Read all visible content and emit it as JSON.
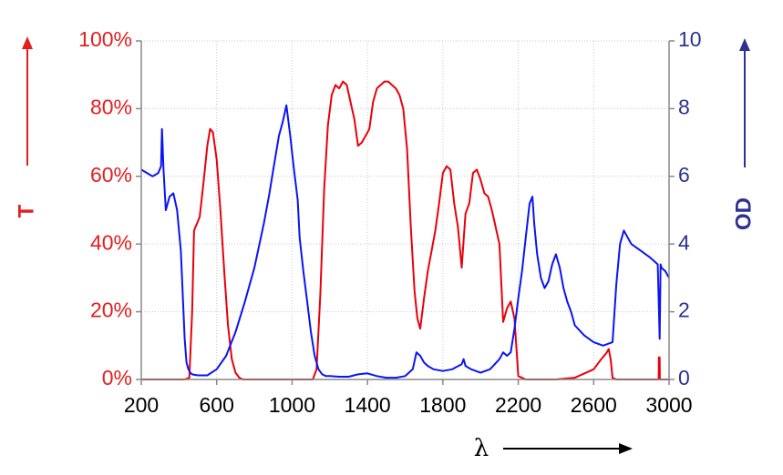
{
  "chart_data": {
    "type": "line",
    "xlabel": "λ",
    "xlim": [
      200,
      3000
    ],
    "x_ticks": [
      "200",
      "600",
      "1000",
      "1400",
      "1800",
      "2200",
      "2600",
      "3000"
    ],
    "left_axis": {
      "label": "T",
      "color": "#e41e1e",
      "ylim": [
        0,
        100
      ],
      "ticks": [
        "0%",
        "20%",
        "40%",
        "60%",
        "80%",
        "100%"
      ]
    },
    "right_axis": {
      "label": "OD",
      "color": "#2e3192",
      "ylim": [
        0,
        10
      ],
      "ticks": [
        "0",
        "2",
        "4",
        "6",
        "8",
        "10"
      ]
    },
    "grid": true,
    "series": [
      {
        "axis": "left",
        "color": "#e8000b",
        "x": [
          200,
          430,
          455,
          470,
          480,
          495,
          510,
          530,
          550,
          565,
          580,
          600,
          620,
          640,
          660,
          680,
          700,
          720,
          740,
          760,
          780,
          1000,
          1110,
          1130,
          1150,
          1170,
          1190,
          1210,
          1230,
          1250,
          1270,
          1290,
          1310,
          1330,
          1350,
          1370,
          1390,
          1410,
          1430,
          1450,
          1470,
          1490,
          1510,
          1530,
          1550,
          1570,
          1590,
          1610,
          1630,
          1650,
          1665,
          1680,
          1700,
          1720,
          1740,
          1760,
          1780,
          1800,
          1820,
          1840,
          1860,
          1880,
          1900,
          1920,
          1940,
          1960,
          1980,
          2000,
          2020,
          2040,
          2060,
          2080,
          2100,
          2120,
          2140,
          2160,
          2180,
          2200,
          2240,
          2300,
          2400,
          2500,
          2560,
          2600,
          2640,
          2670,
          2680,
          2690,
          2700,
          2720,
          2940,
          2945,
          2946,
          2950,
          2951,
          3000
        ],
        "y": [
          0,
          0,
          0.5,
          20,
          44,
          46,
          48,
          58,
          69,
          74,
          73,
          65,
          50,
          32,
          16,
          6,
          2,
          0.5,
          0,
          0,
          0,
          0,
          0,
          3,
          25,
          56,
          75,
          84,
          87,
          86,
          88,
          87,
          82,
          77,
          69,
          70,
          72,
          74,
          82,
          86,
          87,
          88,
          88,
          87,
          86,
          84,
          80,
          68,
          45,
          26,
          18,
          15,
          24,
          32,
          38,
          44,
          52,
          61,
          63,
          62,
          52,
          45,
          33,
          49,
          52,
          61,
          62,
          59,
          55,
          54,
          50,
          45,
          40,
          17,
          21,
          23,
          18,
          1,
          0,
          0,
          0,
          0.5,
          2,
          3,
          6,
          8,
          9,
          6,
          0.5,
          0,
          0,
          0,
          6.5,
          6.5,
          0,
          0
        ]
      },
      {
        "axis": "right",
        "color": "#0a14f5",
        "x": [
          200,
          230,
          260,
          290,
          305,
          310,
          318,
          330,
          350,
          370,
          390,
          410,
          420,
          430,
          440,
          450,
          460,
          470,
          500,
          550,
          600,
          650,
          700,
          750,
          800,
          850,
          880,
          900,
          930,
          950,
          970,
          990,
          1010,
          1030,
          1040,
          1060,
          1080,
          1100,
          1120,
          1140,
          1160,
          1180,
          1200,
          1250,
          1300,
          1350,
          1400,
          1450,
          1500,
          1550,
          1600,
          1640,
          1660,
          1680,
          1700,
          1720,
          1750,
          1800,
          1850,
          1900,
          1910,
          1920,
          1950,
          2000,
          2050,
          2100,
          2120,
          2140,
          2160,
          2180,
          2200,
          2220,
          2240,
          2260,
          2275,
          2285,
          2300,
          2320,
          2340,
          2360,
          2380,
          2400,
          2420,
          2440,
          2460,
          2480,
          2500,
          2550,
          2600,
          2650,
          2700,
          2720,
          2740,
          2760,
          2780,
          2800,
          2850,
          2900,
          2940,
          2950,
          2955,
          2960,
          2980,
          3000
        ],
        "y": [
          6.2,
          6.1,
          6.0,
          6.1,
          6.3,
          7.4,
          6.2,
          5.0,
          5.4,
          5.5,
          5.0,
          3.8,
          2.5,
          1.2,
          0.5,
          0.3,
          0.2,
          0.15,
          0.12,
          0.12,
          0.3,
          0.7,
          1.4,
          2.3,
          3.3,
          4.6,
          5.5,
          6.2,
          7.2,
          7.6,
          8.1,
          7.2,
          6.2,
          5.3,
          4.2,
          3.2,
          2.3,
          1.4,
          0.7,
          0.3,
          0.15,
          0.1,
          0.1,
          0.08,
          0.08,
          0.15,
          0.18,
          0.1,
          0.05,
          0.05,
          0.1,
          0.3,
          0.8,
          0.7,
          0.5,
          0.4,
          0.3,
          0.25,
          0.3,
          0.45,
          0.6,
          0.4,
          0.3,
          0.2,
          0.3,
          0.6,
          0.8,
          0.7,
          0.8,
          1.5,
          2.4,
          3.2,
          4.2,
          5.2,
          5.4,
          4.6,
          3.7,
          3.0,
          2.7,
          2.9,
          3.4,
          3.7,
          3.3,
          2.7,
          2.3,
          2.0,
          1.6,
          1.3,
          1.1,
          1.0,
          1.1,
          2.8,
          4.0,
          4.4,
          4.2,
          4.0,
          3.8,
          3.6,
          3.4,
          1.2,
          3.4,
          3.3,
          3.2,
          3.0
        ]
      }
    ]
  }
}
